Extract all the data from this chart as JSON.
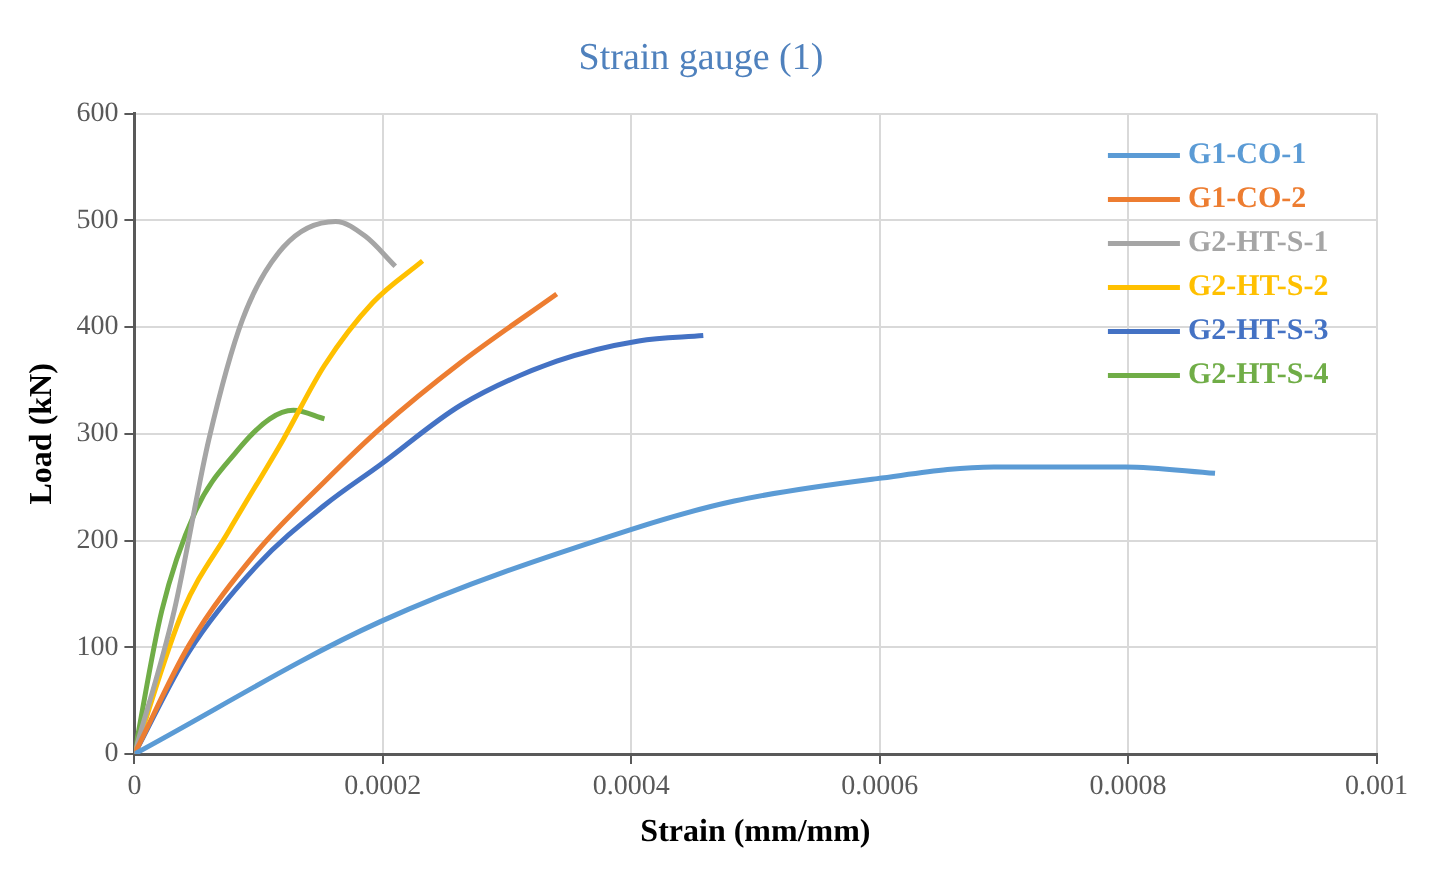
{
  "chart_data": {
    "type": "line",
    "title": "Strain gauge (1)",
    "xlabel": "Strain (mm/mm)",
    "ylabel": "Load (kN)",
    "xlim": [
      0,
      0.001
    ],
    "xticks": [
      0,
      0.0002,
      0.0004,
      0.0006,
      0.0008,
      0.001
    ],
    "ylim": [
      0,
      600
    ],
    "yticks": [
      0,
      100,
      200,
      300,
      400,
      500,
      600
    ],
    "grid": true,
    "legend": "top right",
    "marker": "none",
    "line_style": "solid",
    "series": [
      {
        "name": "G1-CO-1",
        "color": "#5b9bd5",
        "x": [
          0,
          0.000198,
          0.000399,
          0.000483,
          0.000598,
          0.000692,
          0.000798,
          0.00087
        ],
        "values": [
          0,
          124,
          210,
          237,
          258,
          269,
          269,
          263
        ]
      },
      {
        "name": "G1-CO-2",
        "color": "#ed7d31",
        "x": [
          0,
          4.4e-05,
          9.9e-05,
          0.000153,
          0.000198,
          0.000263,
          0.00034
        ],
        "values": [
          0,
          102,
          190,
          255,
          305,
          367,
          431
        ]
      },
      {
        "name": "G2-HT-S-1",
        "color": "#a5a5a5",
        "x": [
          0,
          3.2e-05,
          6e-05,
          8.7e-05,
          0.00012,
          0.000162,
          0.000186,
          0.00021
        ],
        "values": [
          0,
          134,
          295,
          407,
          475,
          499,
          485,
          457
        ]
      },
      {
        "name": "G2-HT-S-2",
        "color": "#ffc000",
        "x": [
          0,
          3.9e-05,
          7.6e-05,
          0.00012,
          0.000153,
          0.000192,
          0.000232
        ],
        "values": [
          0,
          134,
          209,
          295,
          364,
          423,
          462
        ]
      },
      {
        "name": "G2-HT-S-3",
        "color": "#4472c4",
        "x": [
          0,
          4.4e-05,
          9.9e-05,
          0.000153,
          0.000198,
          0.000263,
          0.00034,
          0.000406,
          0.000458
        ],
        "values": [
          0,
          96,
          177,
          233,
          271,
          327,
          368,
          387,
          392
        ]
      },
      {
        "name": "G2-HT-S-4",
        "color": "#70ad47",
        "x": [
          0,
          2.2e-05,
          4.9e-05,
          8.2e-05,
          0.000109,
          0.000128,
          0.000153
        ],
        "values": [
          0,
          134,
          227,
          283,
          314,
          322,
          314
        ]
      }
    ]
  }
}
